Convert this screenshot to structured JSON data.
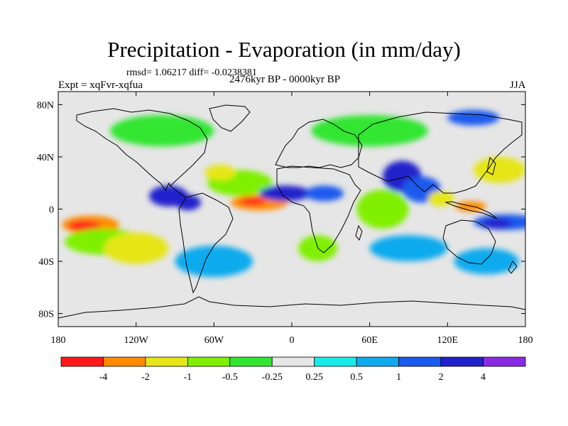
{
  "header": {
    "title": "Precipitation - Evaporation (in mm/day)",
    "stats": "rmsd= 1.06217 diff= -0.0238381",
    "period": "2476kyr BP - 0000kyr BP",
    "experiment": "Expt = xqFvr-xqfua",
    "season": "JJA"
  },
  "axes": {
    "y_ticks": [
      {
        "value": 80,
        "label": "80N"
      },
      {
        "value": 40,
        "label": "40N"
      },
      {
        "value": 0,
        "label": "0"
      },
      {
        "value": -40,
        "label": "40S"
      },
      {
        "value": -80,
        "label": "80S"
      }
    ],
    "x_ticks": [
      {
        "value": -180,
        "label": "180"
      },
      {
        "value": -120,
        "label": "120W"
      },
      {
        "value": -60,
        "label": "60W"
      },
      {
        "value": 0,
        "label": "0"
      },
      {
        "value": 60,
        "label": "60E"
      },
      {
        "value": 120,
        "label": "120E"
      },
      {
        "value": 180,
        "label": "180"
      }
    ],
    "lon_range": [
      -180,
      180
    ],
    "lat_range": [
      -90,
      90
    ]
  },
  "colorbar": {
    "colors": [
      "#ff1a1a",
      "#ff8c00",
      "#e6e619",
      "#80f000",
      "#33e633",
      "#e6e6e6",
      "#19ebeb",
      "#11aaee",
      "#1a5aee",
      "#2222cc",
      "#8a2be2"
    ],
    "labels": [
      "-4",
      "-2",
      "-1",
      "-0.5",
      "-0.25",
      "0.25",
      "0.5",
      "1",
      "2",
      "4"
    ]
  },
  "chart_data": {
    "type": "heatmap",
    "title": "Precipitation - Evaporation (in mm/day)",
    "projection": "cylindrical equidistant",
    "levels": [
      -4,
      -2,
      -1,
      -0.5,
      -0.25,
      0.25,
      0.5,
      1,
      2,
      4
    ],
    "background_level": "-0.25 to 0.25",
    "features": [
      {
        "lon": 165,
        "lat": -10,
        "rlon": 25,
        "rlat": 6,
        "value": 1
      },
      {
        "lon": 158,
        "lat": -11,
        "rlon": 12,
        "rlat": 4,
        "value": 2
      },
      {
        "lon": -155,
        "lat": -12,
        "rlon": 22,
        "rlat": 7,
        "value": -3
      },
      {
        "lon": -160,
        "lat": -13,
        "rlon": 12,
        "rlat": 4,
        "value": -5
      },
      {
        "lon": -145,
        "lat": -25,
        "rlon": 30,
        "rlat": 10,
        "value": -0.7
      },
      {
        "lon": -120,
        "lat": -30,
        "rlon": 25,
        "rlat": 12,
        "value": -1.5
      },
      {
        "lon": -25,
        "lat": 5,
        "rlon": 22,
        "rlat": 6,
        "value": -3
      },
      {
        "lon": -30,
        "lat": 6,
        "rlon": 10,
        "rlat": 3,
        "value": -5
      },
      {
        "lon": -40,
        "lat": 20,
        "rlon": 25,
        "rlat": 10,
        "value": -0.7
      },
      {
        "lon": -55,
        "lat": 28,
        "rlon": 12,
        "rlat": 6,
        "value": -2
      },
      {
        "lon": -95,
        "lat": 10,
        "rlon": 15,
        "rlat": 8,
        "value": 2
      },
      {
        "lon": -80,
        "lat": 5,
        "rlon": 10,
        "rlat": 6,
        "value": 3
      },
      {
        "lon": -5,
        "lat": 12,
        "rlon": 20,
        "rlat": 6,
        "value": 2
      },
      {
        "lon": 25,
        "lat": 12,
        "rlon": 15,
        "rlat": 6,
        "value": 1.5
      },
      {
        "lon": 85,
        "lat": 25,
        "rlon": 15,
        "rlat": 12,
        "value": 2
      },
      {
        "lon": 100,
        "lat": 15,
        "rlon": 15,
        "rlat": 10,
        "value": 1.5
      },
      {
        "lon": 115,
        "lat": 8,
        "rlon": 10,
        "rlat": 6,
        "value": -2
      },
      {
        "lon": 138,
        "lat": 2,
        "rlon": 12,
        "rlat": 4,
        "value": -3
      },
      {
        "lon": 160,
        "lat": 30,
        "rlon": 20,
        "rlat": 10,
        "value": -1.5
      },
      {
        "lon": 70,
        "lat": 0,
        "rlon": 20,
        "rlat": 15,
        "value": -0.7
      },
      {
        "lon": 90,
        "lat": -30,
        "rlon": 30,
        "rlat": 10,
        "value": 0.7
      },
      {
        "lon": 150,
        "lat": -40,
        "rlon": 25,
        "rlat": 10,
        "value": 0.7
      },
      {
        "lon": -60,
        "lat": -40,
        "rlon": 30,
        "rlat": 12,
        "value": 0.7
      },
      {
        "lon": 20,
        "lat": -30,
        "rlon": 15,
        "rlat": 10,
        "value": -0.7
      },
      {
        "lon": -100,
        "lat": 60,
        "rlon": 40,
        "rlat": 12,
        "value": -0.4
      },
      {
        "lon": 60,
        "lat": 60,
        "rlon": 45,
        "rlat": 12,
        "value": -0.4
      },
      {
        "lon": 140,
        "lat": 70,
        "rlon": 20,
        "rlat": 6,
        "value": 1
      }
    ]
  }
}
